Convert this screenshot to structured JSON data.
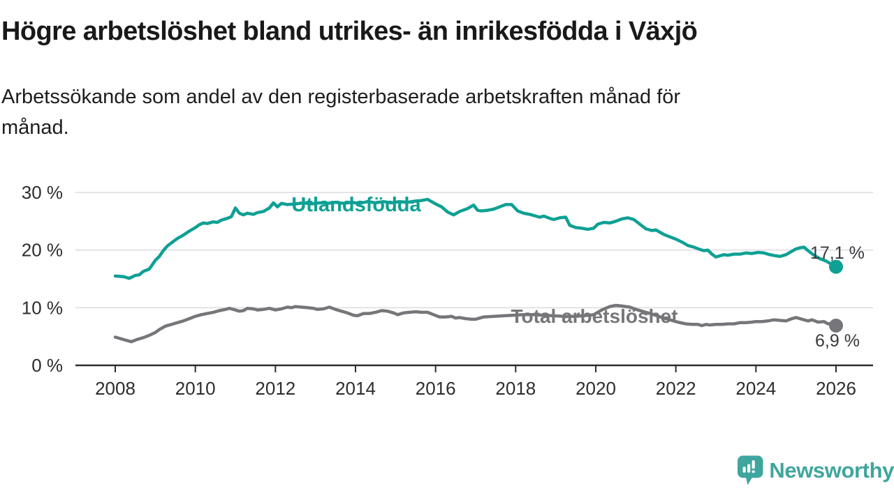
{
  "header": {
    "title": "Högre arbetslöshet bland utrikes- än inrikesfödda i Växjö",
    "subtitle_lines": [
      "Arbetssökande som andel av den registerbaserade arbetskraften månad för",
      "månad."
    ]
  },
  "chart_data": {
    "type": "line",
    "title": "Högre arbetslöshet bland utrikes- än inrikesfödda i Växjö",
    "subtitle": "Arbetssökande som andel av den registerbaserade arbetskraften månad för månad.",
    "unit": "%",
    "grid": true,
    "legend": "inline-labels",
    "xlim": [
      2007,
      2027
    ],
    "ylim": [
      0,
      31
    ],
    "x_ticks": [
      2008,
      2010,
      2012,
      2014,
      2016,
      2018,
      2020,
      2022,
      2024,
      2026
    ],
    "y_ticks": [
      {
        "v": 0,
        "label": "0 %"
      },
      {
        "v": 10,
        "label": "10 %"
      },
      {
        "v": 20,
        "label": "20 %"
      },
      {
        "v": 30,
        "label": "30 %"
      }
    ],
    "series": [
      {
        "name": "Utlandsfödda",
        "color": "#0ea094",
        "end_label": "17,1 %",
        "points": [
          [
            2008.0,
            15.5
          ],
          [
            2008.2,
            15.4
          ],
          [
            2008.35,
            15.1
          ],
          [
            2008.5,
            15.6
          ],
          [
            2008.6,
            15.7
          ],
          [
            2008.7,
            16.3
          ],
          [
            2008.85,
            16.7
          ],
          [
            2009.0,
            18.2
          ],
          [
            2009.1,
            18.9
          ],
          [
            2009.2,
            19.9
          ],
          [
            2009.3,
            20.7
          ],
          [
            2009.45,
            21.5
          ],
          [
            2009.55,
            22.0
          ],
          [
            2009.7,
            22.6
          ],
          [
            2009.85,
            23.3
          ],
          [
            2010.0,
            23.9
          ],
          [
            2010.1,
            24.4
          ],
          [
            2010.2,
            24.7
          ],
          [
            2010.3,
            24.6
          ],
          [
            2010.45,
            24.9
          ],
          [
            2010.55,
            24.8
          ],
          [
            2010.65,
            25.2
          ],
          [
            2010.8,
            25.5
          ],
          [
            2010.9,
            25.8
          ],
          [
            2011.0,
            27.3
          ],
          [
            2011.1,
            26.4
          ],
          [
            2011.2,
            26.1
          ],
          [
            2011.3,
            26.4
          ],
          [
            2011.45,
            26.2
          ],
          [
            2011.55,
            26.5
          ],
          [
            2011.7,
            26.7
          ],
          [
            2011.85,
            27.3
          ],
          [
            2011.95,
            28.2
          ],
          [
            2012.05,
            27.5
          ],
          [
            2012.15,
            28.1
          ],
          [
            2012.3,
            27.9
          ],
          [
            2012.5,
            28.0
          ],
          [
            2012.7,
            28.2
          ],
          [
            2012.9,
            28.0
          ],
          [
            2013.1,
            28.2
          ],
          [
            2013.3,
            28.1
          ],
          [
            2013.5,
            28.3
          ],
          [
            2013.7,
            28.1
          ],
          [
            2013.9,
            28.3
          ],
          [
            2014.1,
            28.1
          ],
          [
            2014.3,
            28.4
          ],
          [
            2014.5,
            28.2
          ],
          [
            2014.7,
            28.4
          ],
          [
            2014.9,
            28.2
          ],
          [
            2015.1,
            28.4
          ],
          [
            2015.3,
            28.3
          ],
          [
            2015.5,
            28.5
          ],
          [
            2015.65,
            28.6
          ],
          [
            2015.8,
            28.8
          ],
          [
            2015.9,
            28.4
          ],
          [
            2016.0,
            28.0
          ],
          [
            2016.15,
            27.5
          ],
          [
            2016.3,
            26.6
          ],
          [
            2016.45,
            26.1
          ],
          [
            2016.6,
            26.7
          ],
          [
            2016.8,
            27.2
          ],
          [
            2016.95,
            27.8
          ],
          [
            2017.05,
            26.9
          ],
          [
            2017.15,
            26.8
          ],
          [
            2017.3,
            26.9
          ],
          [
            2017.45,
            27.1
          ],
          [
            2017.6,
            27.5
          ],
          [
            2017.75,
            27.9
          ],
          [
            2017.9,
            27.9
          ],
          [
            2018.05,
            26.8
          ],
          [
            2018.2,
            26.4
          ],
          [
            2018.35,
            26.2
          ],
          [
            2018.5,
            25.9
          ],
          [
            2018.6,
            25.7
          ],
          [
            2018.7,
            25.9
          ],
          [
            2018.85,
            25.5
          ],
          [
            2018.95,
            25.3
          ],
          [
            2019.1,
            25.6
          ],
          [
            2019.25,
            25.7
          ],
          [
            2019.35,
            24.3
          ],
          [
            2019.5,
            23.9
          ],
          [
            2019.65,
            23.8
          ],
          [
            2019.8,
            23.6
          ],
          [
            2019.95,
            23.8
          ],
          [
            2020.05,
            24.5
          ],
          [
            2020.2,
            24.8
          ],
          [
            2020.35,
            24.7
          ],
          [
            2020.5,
            25.0
          ],
          [
            2020.65,
            25.4
          ],
          [
            2020.8,
            25.6
          ],
          [
            2020.95,
            25.3
          ],
          [
            2021.1,
            24.5
          ],
          [
            2021.25,
            23.7
          ],
          [
            2021.4,
            23.4
          ],
          [
            2021.5,
            23.5
          ],
          [
            2021.6,
            23.1
          ],
          [
            2021.7,
            22.7
          ],
          [
            2021.85,
            22.3
          ],
          [
            2022.0,
            21.9
          ],
          [
            2022.15,
            21.4
          ],
          [
            2022.3,
            20.8
          ],
          [
            2022.45,
            20.5
          ],
          [
            2022.6,
            20.1
          ],
          [
            2022.7,
            19.9
          ],
          [
            2022.8,
            20.0
          ],
          [
            2022.9,
            19.3
          ],
          [
            2023.0,
            18.8
          ],
          [
            2023.1,
            19.0
          ],
          [
            2023.2,
            19.2
          ],
          [
            2023.3,
            19.1
          ],
          [
            2023.45,
            19.3
          ],
          [
            2023.6,
            19.3
          ],
          [
            2023.75,
            19.5
          ],
          [
            2023.9,
            19.4
          ],
          [
            2024.05,
            19.6
          ],
          [
            2024.2,
            19.5
          ],
          [
            2024.35,
            19.2
          ],
          [
            2024.5,
            19.0
          ],
          [
            2024.6,
            18.9
          ],
          [
            2024.75,
            19.2
          ],
          [
            2024.9,
            19.8
          ],
          [
            2025.0,
            20.2
          ],
          [
            2025.1,
            20.4
          ],
          [
            2025.2,
            20.5
          ],
          [
            2025.3,
            19.9
          ],
          [
            2025.45,
            19.1
          ],
          [
            2025.6,
            18.5
          ],
          [
            2025.75,
            18.1
          ],
          [
            2025.85,
            17.7
          ],
          [
            2026.0,
            17.1
          ]
        ]
      },
      {
        "name": "Total arbetslöshet",
        "color": "#76767a",
        "end_label": "6,9 %",
        "points": [
          [
            2008.0,
            4.9
          ],
          [
            2008.15,
            4.6
          ],
          [
            2008.3,
            4.3
          ],
          [
            2008.4,
            4.1
          ],
          [
            2008.55,
            4.5
          ],
          [
            2008.7,
            4.8
          ],
          [
            2008.85,
            5.2
          ],
          [
            2009.0,
            5.7
          ],
          [
            2009.1,
            6.2
          ],
          [
            2009.25,
            6.8
          ],
          [
            2009.4,
            7.1
          ],
          [
            2009.55,
            7.4
          ],
          [
            2009.7,
            7.7
          ],
          [
            2009.85,
            8.1
          ],
          [
            2010.0,
            8.5
          ],
          [
            2010.15,
            8.8
          ],
          [
            2010.3,
            9.0
          ],
          [
            2010.45,
            9.2
          ],
          [
            2010.6,
            9.5
          ],
          [
            2010.75,
            9.7
          ],
          [
            2010.85,
            9.9
          ],
          [
            2011.0,
            9.6
          ],
          [
            2011.1,
            9.4
          ],
          [
            2011.2,
            9.5
          ],
          [
            2011.3,
            9.9
          ],
          [
            2011.45,
            9.8
          ],
          [
            2011.55,
            9.6
          ],
          [
            2011.7,
            9.7
          ],
          [
            2011.85,
            9.9
          ],
          [
            2012.0,
            9.6
          ],
          [
            2012.15,
            9.8
          ],
          [
            2012.3,
            10.1
          ],
          [
            2012.4,
            10.0
          ],
          [
            2012.5,
            10.2
          ],
          [
            2012.65,
            10.1
          ],
          [
            2012.8,
            10.0
          ],
          [
            2012.95,
            9.9
          ],
          [
            2013.05,
            9.7
          ],
          [
            2013.2,
            9.8
          ],
          [
            2013.35,
            10.1
          ],
          [
            2013.5,
            9.7
          ],
          [
            2013.65,
            9.4
          ],
          [
            2013.8,
            9.1
          ],
          [
            2013.95,
            8.7
          ],
          [
            2014.05,
            8.6
          ],
          [
            2014.2,
            9.0
          ],
          [
            2014.35,
            9.0
          ],
          [
            2014.5,
            9.2
          ],
          [
            2014.65,
            9.5
          ],
          [
            2014.8,
            9.4
          ],
          [
            2014.95,
            9.1
          ],
          [
            2015.05,
            8.8
          ],
          [
            2015.2,
            9.1
          ],
          [
            2015.35,
            9.2
          ],
          [
            2015.5,
            9.3
          ],
          [
            2015.65,
            9.2
          ],
          [
            2015.8,
            9.2
          ],
          [
            2015.95,
            8.8
          ],
          [
            2016.1,
            8.4
          ],
          [
            2016.25,
            8.4
          ],
          [
            2016.4,
            8.5
          ],
          [
            2016.5,
            8.2
          ],
          [
            2016.6,
            8.3
          ],
          [
            2016.75,
            8.1
          ],
          [
            2016.9,
            8.0
          ],
          [
            2017.0,
            8.0
          ],
          [
            2017.1,
            8.2
          ],
          [
            2017.2,
            8.4
          ],
          [
            2017.45,
            8.5
          ],
          [
            2017.7,
            8.6
          ],
          [
            2017.95,
            8.7
          ],
          [
            2018.2,
            8.8
          ],
          [
            2018.45,
            8.8
          ],
          [
            2018.7,
            8.7
          ],
          [
            2018.95,
            8.6
          ],
          [
            2019.2,
            8.5
          ],
          [
            2019.45,
            8.5
          ],
          [
            2019.7,
            8.6
          ],
          [
            2019.95,
            8.8
          ],
          [
            2020.15,
            9.6
          ],
          [
            2020.35,
            10.2
          ],
          [
            2020.5,
            10.4
          ],
          [
            2020.65,
            10.3
          ],
          [
            2020.85,
            10.1
          ],
          [
            2021.05,
            9.6
          ],
          [
            2021.25,
            9.2
          ],
          [
            2021.45,
            8.8
          ],
          [
            2021.65,
            8.3
          ],
          [
            2021.85,
            7.9
          ],
          [
            2022.05,
            7.5
          ],
          [
            2022.25,
            7.2
          ],
          [
            2022.4,
            7.1
          ],
          [
            2022.55,
            7.1
          ],
          [
            2022.65,
            6.9
          ],
          [
            2022.75,
            7.1
          ],
          [
            2022.85,
            7.0
          ],
          [
            2023.0,
            7.1
          ],
          [
            2023.15,
            7.1
          ],
          [
            2023.3,
            7.2
          ],
          [
            2023.45,
            7.2
          ],
          [
            2023.6,
            7.4
          ],
          [
            2023.75,
            7.4
          ],
          [
            2023.9,
            7.5
          ],
          [
            2024.0,
            7.6
          ],
          [
            2024.15,
            7.6
          ],
          [
            2024.3,
            7.7
          ],
          [
            2024.45,
            7.9
          ],
          [
            2024.6,
            7.8
          ],
          [
            2024.75,
            7.7
          ],
          [
            2024.9,
            8.1
          ],
          [
            2025.0,
            8.3
          ],
          [
            2025.15,
            8.0
          ],
          [
            2025.3,
            7.7
          ],
          [
            2025.4,
            7.9
          ],
          [
            2025.55,
            7.5
          ],
          [
            2025.7,
            7.6
          ],
          [
            2025.8,
            7.2
          ],
          [
            2025.9,
            7.3
          ],
          [
            2026.0,
            6.9
          ]
        ]
      }
    ]
  },
  "footer": {
    "brand": "Newsworthy"
  },
  "colors": {
    "accent_teal": "#0ea094",
    "gray_series": "#76767a",
    "logo_teal": "#3fa69e",
    "grid": "#dcdcde",
    "axis": "#2d2d31",
    "text": "#191919"
  }
}
